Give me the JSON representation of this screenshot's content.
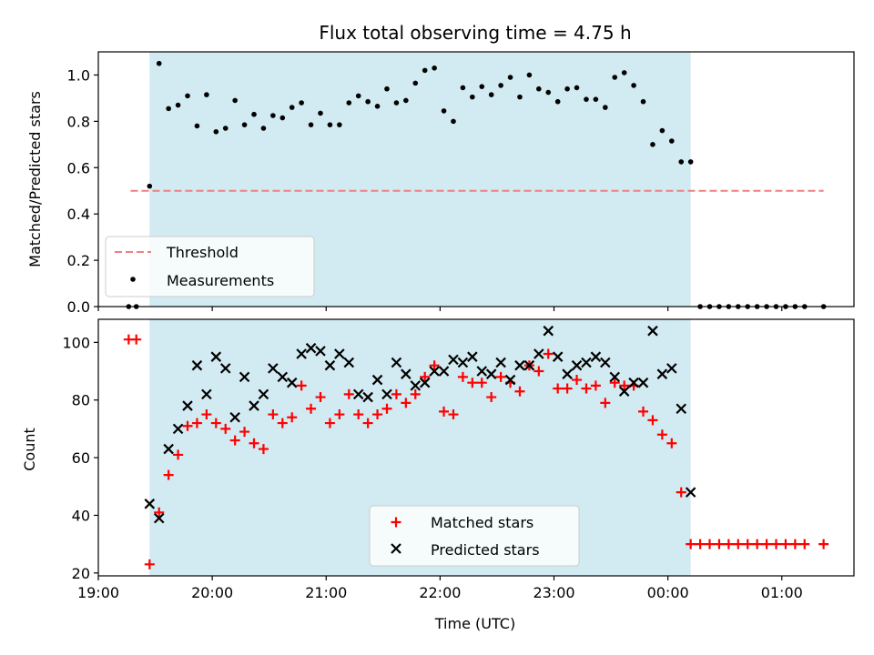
{
  "chart_data": [
    {
      "type": "scatter",
      "title": "Flux total observing time = 4.75 h",
      "xlabel": "",
      "ylabel": "Matched/Predicted stars",
      "x_range": [
        "19:00",
        "01:38"
      ],
      "ylim": [
        0,
        1.1
      ],
      "yticks": [
        "0.0",
        "0.2",
        "0.4",
        "0.6",
        "0.8",
        "1.0"
      ],
      "x_tick_positions": [
        "19:00",
        "20:00",
        "21:00",
        "22:00",
        "23:00",
        "00:00",
        "01:00"
      ],
      "observing_window": {
        "start": "19:27",
        "end": "00:12",
        "color": "#add8e6"
      },
      "threshold": {
        "value": 0.5,
        "x_start": "19:17",
        "x_end": "01:22",
        "color": "#f08080",
        "style": "dashed"
      },
      "legend": {
        "position": "lower-left",
        "entries": [
          "Threshold",
          "Measurements"
        ]
      },
      "series": [
        {
          "name": "Measurements",
          "marker": "dot",
          "color": "#000000",
          "points": [
            [
              "19:16",
              0
            ],
            [
              "19:20",
              0
            ],
            [
              "19:27",
              0.52
            ],
            [
              "19:32",
              1.05
            ],
            [
              "19:37",
              0.855
            ],
            [
              "19:42",
              0.87
            ],
            [
              "19:47",
              0.91
            ],
            [
              "19:52",
              0.78
            ],
            [
              "19:57",
              0.915
            ],
            [
              "20:02",
              0.755
            ],
            [
              "20:07",
              0.77
            ],
            [
              "20:12",
              0.89
            ],
            [
              "20:17",
              0.785
            ],
            [
              "20:22",
              0.83
            ],
            [
              "20:27",
              0.77
            ],
            [
              "20:32",
              0.825
            ],
            [
              "20:37",
              0.815
            ],
            [
              "20:42",
              0.86
            ],
            [
              "20:47",
              0.88
            ],
            [
              "20:52",
              0.785
            ],
            [
              "20:57",
              0.835
            ],
            [
              "21:02",
              0.785
            ],
            [
              "21:07",
              0.785
            ],
            [
              "21:12",
              0.88
            ],
            [
              "21:17",
              0.91
            ],
            [
              "21:22",
              0.885
            ],
            [
              "21:27",
              0.865
            ],
            [
              "21:32",
              0.94
            ],
            [
              "21:37",
              0.88
            ],
            [
              "21:42",
              0.89
            ],
            [
              "21:47",
              0.965
            ],
            [
              "21:52",
              1.02
            ],
            [
              "21:57",
              1.03
            ],
            [
              "22:02",
              0.845
            ],
            [
              "22:07",
              0.8
            ],
            [
              "22:12",
              0.945
            ],
            [
              "22:17",
              0.905
            ],
            [
              "22:22",
              0.95
            ],
            [
              "22:27",
              0.915
            ],
            [
              "22:32",
              0.955
            ],
            [
              "22:37",
              0.99
            ],
            [
              "22:42",
              0.905
            ],
            [
              "22:47",
              1.0
            ],
            [
              "22:52",
              0.94
            ],
            [
              "22:57",
              0.925
            ],
            [
              "23:02",
              0.885
            ],
            [
              "23:07",
              0.94
            ],
            [
              "23:12",
              0.945
            ],
            [
              "23:17",
              0.895
            ],
            [
              "23:22",
              0.895
            ],
            [
              "23:27",
              0.86
            ],
            [
              "23:32",
              0.99
            ],
            [
              "23:37",
              1.01
            ],
            [
              "23:42",
              0.955
            ],
            [
              "23:47",
              0.885
            ],
            [
              "23:52",
              0.7
            ],
            [
              "23:57",
              0.76
            ],
            [
              "00:02",
              0.715
            ],
            [
              "00:07",
              0.625
            ],
            [
              "00:12",
              0.625
            ],
            [
              "00:17",
              0
            ],
            [
              "00:22",
              0
            ],
            [
              "00:27",
              0
            ],
            [
              "00:32",
              0
            ],
            [
              "00:37",
              0
            ],
            [
              "00:42",
              0
            ],
            [
              "00:47",
              0
            ],
            [
              "00:52",
              0
            ],
            [
              "00:57",
              0
            ],
            [
              "01:02",
              0
            ],
            [
              "01:07",
              0
            ],
            [
              "01:12",
              0
            ],
            [
              "01:22",
              0
            ]
          ]
        }
      ]
    },
    {
      "type": "scatter",
      "title": "",
      "xlabel": "Time (UTC)",
      "ylabel": "Count",
      "x_range": [
        "19:00",
        "01:38"
      ],
      "ylim": [
        19,
        108
      ],
      "yticks": [
        "20",
        "40",
        "60",
        "80",
        "100"
      ],
      "xticks": [
        "19:00",
        "20:00",
        "21:00",
        "22:00",
        "23:00",
        "00:00",
        "01:00"
      ],
      "observing_window": {
        "start": "19:27",
        "end": "00:12",
        "color": "#add8e6"
      },
      "legend": {
        "position": "lower-center",
        "entries": [
          "Matched stars",
          "Predicted stars"
        ]
      },
      "series": [
        {
          "name": "Matched stars",
          "marker": "plus",
          "color": "#ff0000",
          "points": [
            [
              "19:16",
              101
            ],
            [
              "19:20",
              101
            ],
            [
              "19:27",
              23
            ],
            [
              "19:32",
              41
            ],
            [
              "19:37",
              54
            ],
            [
              "19:42",
              61
            ],
            [
              "19:47",
              71
            ],
            [
              "19:52",
              72
            ],
            [
              "19:57",
              75
            ],
            [
              "20:02",
              72
            ],
            [
              "20:07",
              70
            ],
            [
              "20:12",
              66
            ],
            [
              "20:17",
              69
            ],
            [
              "20:22",
              65
            ],
            [
              "20:27",
              63
            ],
            [
              "20:32",
              75
            ],
            [
              "20:37",
              72
            ],
            [
              "20:42",
              74
            ],
            [
              "20:47",
              85
            ],
            [
              "20:52",
              77
            ],
            [
              "20:57",
              81
            ],
            [
              "21:02",
              72
            ],
            [
              "21:07",
              75
            ],
            [
              "21:12",
              82
            ],
            [
              "21:17",
              75
            ],
            [
              "21:22",
              72
            ],
            [
              "21:27",
              75
            ],
            [
              "21:32",
              77
            ],
            [
              "21:37",
              82
            ],
            [
              "21:42",
              79
            ],
            [
              "21:47",
              82
            ],
            [
              "21:52",
              88
            ],
            [
              "21:57",
              92
            ],
            [
              "22:02",
              76
            ],
            [
              "22:07",
              75
            ],
            [
              "22:12",
              88
            ],
            [
              "22:17",
              86
            ],
            [
              "22:22",
              86
            ],
            [
              "22:27",
              81
            ],
            [
              "22:32",
              88
            ],
            [
              "22:37",
              86
            ],
            [
              "22:42",
              83
            ],
            [
              "22:47",
              92
            ],
            [
              "22:52",
              90
            ],
            [
              "22:57",
              96
            ],
            [
              "23:02",
              84
            ],
            [
              "23:07",
              84
            ],
            [
              "23:12",
              87
            ],
            [
              "23:17",
              84
            ],
            [
              "23:22",
              85
            ],
            [
              "23:27",
              79
            ],
            [
              "23:32",
              86
            ],
            [
              "23:37",
              85
            ],
            [
              "23:42",
              85
            ],
            [
              "23:47",
              76
            ],
            [
              "23:52",
              73
            ],
            [
              "23:57",
              68
            ],
            [
              "00:02",
              65
            ],
            [
              "00:07",
              48
            ],
            [
              "00:12",
              30
            ],
            [
              "00:17",
              30
            ],
            [
              "00:22",
              30
            ],
            [
              "00:27",
              30
            ],
            [
              "00:32",
              30
            ],
            [
              "00:37",
              30
            ],
            [
              "00:42",
              30
            ],
            [
              "00:47",
              30
            ],
            [
              "00:52",
              30
            ],
            [
              "00:57",
              30
            ],
            [
              "01:02",
              30
            ],
            [
              "01:07",
              30
            ],
            [
              "01:12",
              30
            ],
            [
              "01:22",
              30
            ]
          ]
        },
        {
          "name": "Predicted stars",
          "marker": "x",
          "color": "#000000",
          "points": [
            [
              "19:27",
              44
            ],
            [
              "19:32",
              39
            ],
            [
              "19:37",
              63
            ],
            [
              "19:42",
              70
            ],
            [
              "19:47",
              78
            ],
            [
              "19:52",
              92
            ],
            [
              "19:57",
              82
            ],
            [
              "20:02",
              95
            ],
            [
              "20:07",
              91
            ],
            [
              "20:12",
              74
            ],
            [
              "20:17",
              88
            ],
            [
              "20:22",
              78
            ],
            [
              "20:27",
              82
            ],
            [
              "20:32",
              91
            ],
            [
              "20:37",
              88
            ],
            [
              "20:42",
              86
            ],
            [
              "20:47",
              96
            ],
            [
              "20:52",
              98
            ],
            [
              "20:57",
              97
            ],
            [
              "21:02",
              92
            ],
            [
              "21:07",
              96
            ],
            [
              "21:12",
              93
            ],
            [
              "21:17",
              82
            ],
            [
              "21:22",
              81
            ],
            [
              "21:27",
              87
            ],
            [
              "21:32",
              82
            ],
            [
              "21:37",
              93
            ],
            [
              "21:42",
              89
            ],
            [
              "21:47",
              85
            ],
            [
              "21:52",
              86
            ],
            [
              "21:57",
              90
            ],
            [
              "22:02",
              90
            ],
            [
              "22:07",
              94
            ],
            [
              "22:12",
              93
            ],
            [
              "22:17",
              95
            ],
            [
              "22:22",
              90
            ],
            [
              "22:27",
              89
            ],
            [
              "22:32",
              93
            ],
            [
              "22:37",
              87
            ],
            [
              "22:42",
              92
            ],
            [
              "22:47",
              92
            ],
            [
              "22:52",
              96
            ],
            [
              "22:57",
              104
            ],
            [
              "23:02",
              95
            ],
            [
              "23:07",
              89
            ],
            [
              "23:12",
              92
            ],
            [
              "23:17",
              93
            ],
            [
              "23:22",
              95
            ],
            [
              "23:27",
              93
            ],
            [
              "23:32",
              88
            ],
            [
              "23:37",
              83
            ],
            [
              "23:42",
              86
            ],
            [
              "23:47",
              86
            ],
            [
              "23:52",
              104
            ],
            [
              "23:57",
              89
            ],
            [
              "00:02",
              91
            ],
            [
              "00:07",
              77
            ],
            [
              "00:12",
              48
            ]
          ]
        }
      ]
    }
  ]
}
